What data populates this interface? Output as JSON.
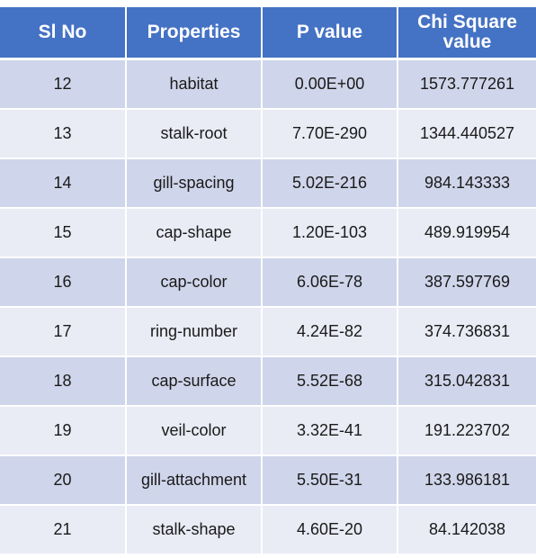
{
  "table": {
    "headers": [
      "Sl No",
      "Properties",
      "P value",
      "Chi Square value"
    ],
    "rows": [
      [
        "12",
        "habitat",
        "0.00E+00",
        "1573.777261"
      ],
      [
        "13",
        "stalk-root",
        "7.70E-290",
        "1344.440527"
      ],
      [
        "14",
        "gill-spacing",
        "5.02E-216",
        "984.143333"
      ],
      [
        "15",
        "cap-shape",
        "1.20E-103",
        "489.919954"
      ],
      [
        "16",
        "cap-color",
        "6.06E-78",
        "387.597769"
      ],
      [
        "17",
        "ring-number",
        "4.24E-82",
        "374.736831"
      ],
      [
        "18",
        "cap-surface",
        "5.52E-68",
        "315.042831"
      ],
      [
        "19",
        "veil-color",
        "3.32E-41",
        "191.223702"
      ],
      [
        "20",
        "gill-attachment",
        "5.50E-31",
        "133.986181"
      ],
      [
        "21",
        "stalk-shape",
        "4.60E-20",
        "84.142038"
      ]
    ]
  },
  "colors": {
    "header": "#4472C4",
    "row_odd": "#CFD5EA",
    "row_even": "#E9EBF5"
  }
}
